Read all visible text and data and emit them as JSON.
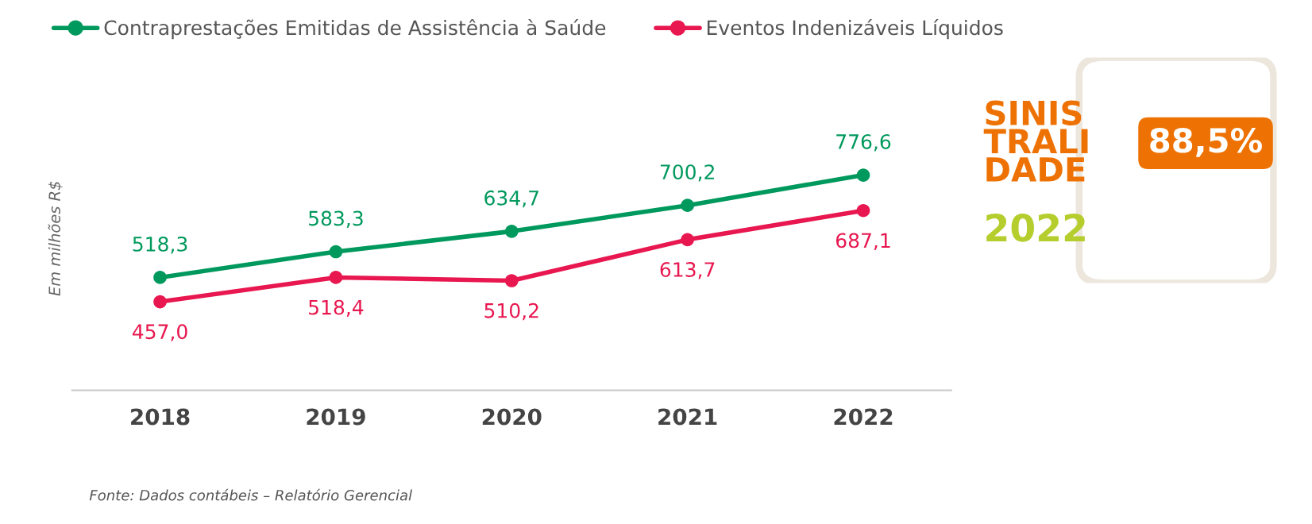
{
  "chart_data": [
    {
      "type": "line",
      "categories": [
        "2018",
        "2019",
        "2020",
        "2021",
        "2022"
      ],
      "ylabel": "Em milhões R$",
      "tick_labels": "x",
      "marker": "circle",
      "line_style": "solid",
      "grid": false,
      "legend": "top",
      "data_labels": true,
      "series": [
        {
          "name": "Contraprestações Emitidas de Assistência à Saúde",
          "color": "#00995d",
          "values": [
            518.3,
            583.3,
            634.7,
            700.2,
            776.6
          ],
          "value_labels": [
            "518,3",
            "583,3",
            "634,7",
            "700,2",
            "776,6"
          ]
        },
        {
          "name": "Eventos Indenizáveis Líquidos",
          "color": "#e8174f",
          "values": [
            457.0,
            518.4,
            510.2,
            613.7,
            687.1
          ],
          "value_labels": [
            "457,0",
            "518,4",
            "510,2",
            "613,7",
            "687,1"
          ]
        }
      ],
      "annotations": [
        "Fonte: Dados contábeis – Relatório Gerencial"
      ]
    },
    {
      "type": "other",
      "annotations": [
        "SINIS\nTRALI\nDADE",
        "2022",
        "88,5%"
      ]
    }
  ]
}
